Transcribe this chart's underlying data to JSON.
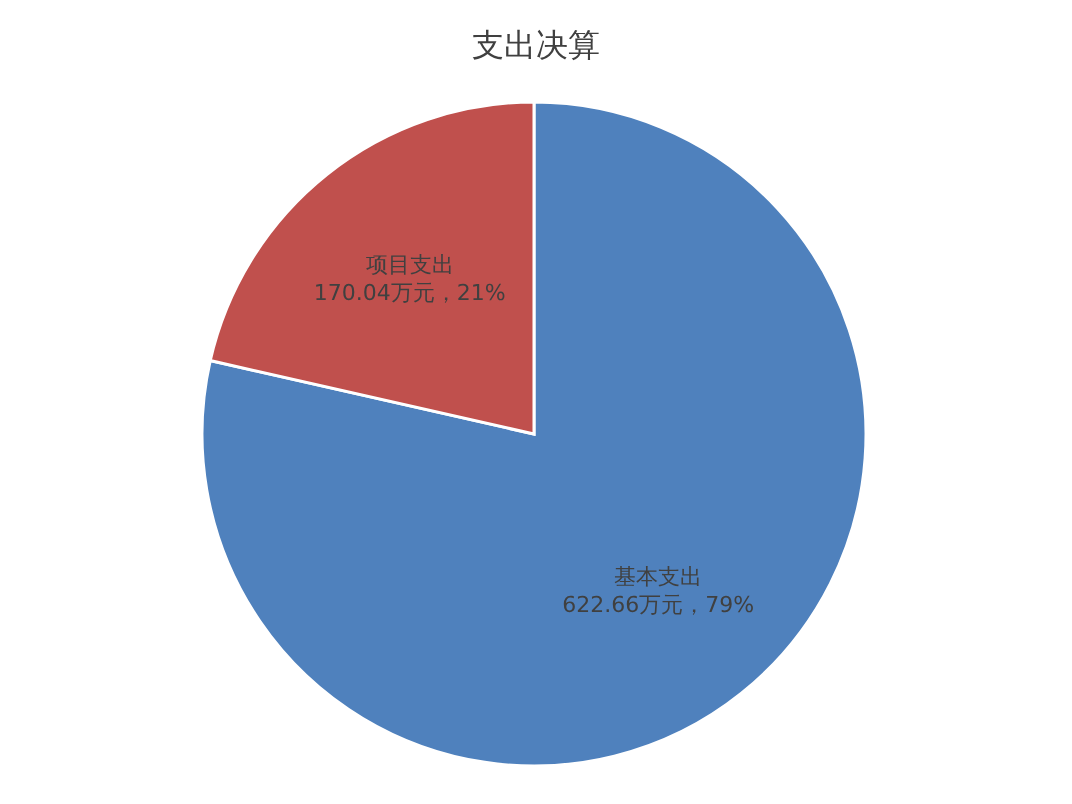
{
  "chart_data": {
    "type": "pie",
    "title": "支出决算",
    "categories": [
      "基本支出",
      "项目支出"
    ],
    "values": [
      622.66,
      170.04
    ],
    "colors": [
      "#4f81bd",
      "#c0504d"
    ],
    "value_labels": [
      "622.66万元，79%",
      "170.04万元，21%"
    ]
  }
}
